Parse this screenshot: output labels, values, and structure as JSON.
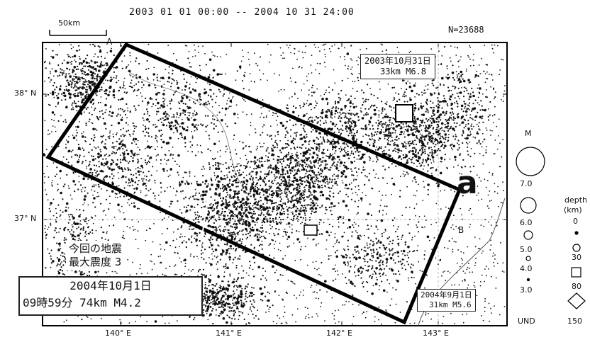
{
  "header": {
    "title": "2003 01 01 00:00 -- 2004 10 31 24:00",
    "scale_label": "50km",
    "count": "N=23688"
  },
  "axes": {
    "lat_38": "38° N",
    "lat_37": "37° N",
    "lon_140": "140° E",
    "lon_141": "141° E",
    "lon_142": "142° E",
    "lon_143": "143° E"
  },
  "region_labels": {
    "section_a": "a",
    "point_a": "A",
    "point_b": "B"
  },
  "annotations": {
    "quake_2003_date": "2003年10月31日",
    "quake_2003_detail": "33km  M6.8",
    "quake_2004_09_date": "2004年9月1日",
    "quake_2004_09_detail": "31km  M5.6",
    "current_label_line1": "今回の地震",
    "current_label_line2": "最大震度 3",
    "current_date": "2004年10月1日",
    "current_detail": "09時59分 74km  M4.2"
  },
  "legend": {
    "magnitude_title": "M",
    "magnitudes": [
      "7.0",
      "6.0",
      "5.0",
      "4.0",
      "3.0",
      "UND"
    ],
    "depth_title_1": "depth",
    "depth_title_2": "(km)",
    "depths": [
      "0",
      "30",
      "80",
      "150"
    ]
  }
}
